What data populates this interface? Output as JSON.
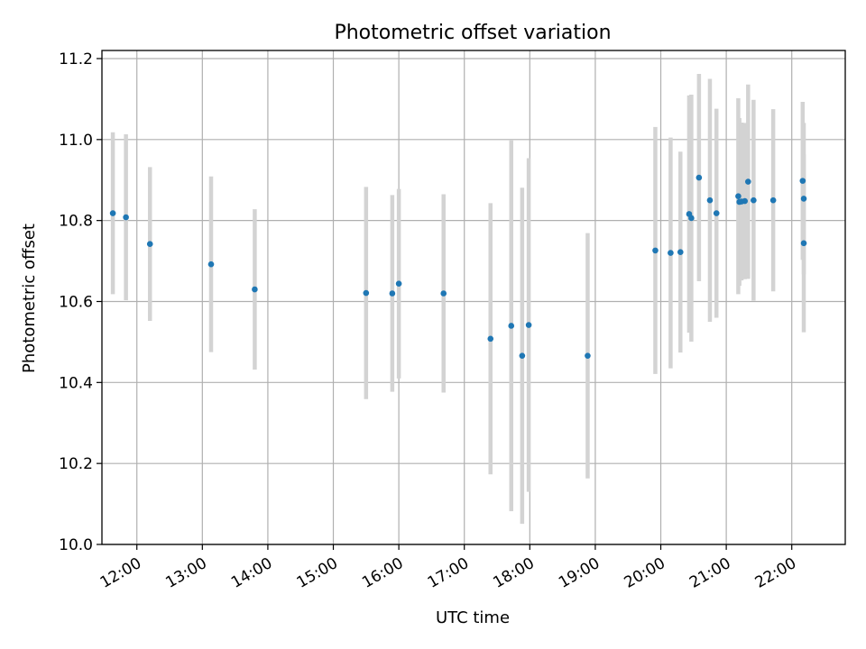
{
  "chart_data": {
    "type": "scatter",
    "title": "Photometric offset variation",
    "xlabel": "UTC time",
    "ylabel": "Photometric offset",
    "ylim": [
      10.0,
      11.22
    ],
    "xlim": [
      "11:28",
      "22:49"
    ],
    "grid": true,
    "yticks": [
      "10.0",
      "10.2",
      "10.4",
      "10.6",
      "10.8",
      "11.0",
      "11.2"
    ],
    "xticks": [
      "12:00",
      "13:00",
      "14:00",
      "15:00",
      "16:00",
      "17:00",
      "18:00",
      "19:00",
      "20:00",
      "21:00",
      "22:00"
    ],
    "points": [
      {
        "x": "11:38",
        "y": 10.818,
        "err": 0.2
      },
      {
        "x": "11:50",
        "y": 10.808,
        "err": 0.205
      },
      {
        "x": "12:12",
        "y": 10.742,
        "err": 0.19
      },
      {
        "x": "13:08",
        "y": 10.692,
        "err": 0.217
      },
      {
        "x": "13:48",
        "y": 10.63,
        "err": 0.198
      },
      {
        "x": "15:30",
        "y": 10.621,
        "err": 0.262
      },
      {
        "x": "15:54",
        "y": 10.62,
        "err": 0.243
      },
      {
        "x": "16:00",
        "y": 10.644,
        "err": 0.234
      },
      {
        "x": "16:41",
        "y": 10.62,
        "err": 0.245
      },
      {
        "x": "17:24",
        "y": 10.508,
        "err": 0.335
      },
      {
        "x": "17:43",
        "y": 10.54,
        "err": 0.458
      },
      {
        "x": "17:53",
        "y": 10.466,
        "err": 0.415
      },
      {
        "x": "17:59",
        "y": 10.542,
        "err": 0.412
      },
      {
        "x": "18:53",
        "y": 10.466,
        "err": 0.303
      },
      {
        "x": "19:55",
        "y": 10.726,
        "err": 0.305
      },
      {
        "x": "20:09",
        "y": 10.72,
        "err": 0.285
      },
      {
        "x": "20:18",
        "y": 10.722,
        "err": 0.248
      },
      {
        "x": "20:26",
        "y": 10.816,
        "err": 0.293
      },
      {
        "x": "20:28",
        "y": 10.806,
        "err": 0.305
      },
      {
        "x": "20:35",
        "y": 10.906,
        "err": 0.256
      },
      {
        "x": "20:45",
        "y": 10.85,
        "err": 0.3
      },
      {
        "x": "20:51",
        "y": 10.818,
        "err": 0.258
      },
      {
        "x": "21:11",
        "y": 10.86,
        "err": 0.242
      },
      {
        "x": "21:12",
        "y": 10.846,
        "err": 0.207
      },
      {
        "x": "21:14",
        "y": 10.847,
        "err": 0.195
      },
      {
        "x": "21:17",
        "y": 10.848,
        "err": 0.193
      },
      {
        "x": "21:20",
        "y": 10.896,
        "err": 0.24
      },
      {
        "x": "21:25",
        "y": 10.85,
        "err": 0.248
      },
      {
        "x": "21:43",
        "y": 10.85,
        "err": 0.225
      },
      {
        "x": "22:10",
        "y": 10.898,
        "err": 0.195
      },
      {
        "x": "22:11",
        "y": 10.854,
        "err": 0.187
      },
      {
        "x": "22:11",
        "y": 10.744,
        "err": 0.22
      }
    ],
    "colors": {
      "point": "#1f77b4",
      "errorbar": "#d3d3d3",
      "grid": "#b0b0b0",
      "axis": "#000000"
    }
  }
}
